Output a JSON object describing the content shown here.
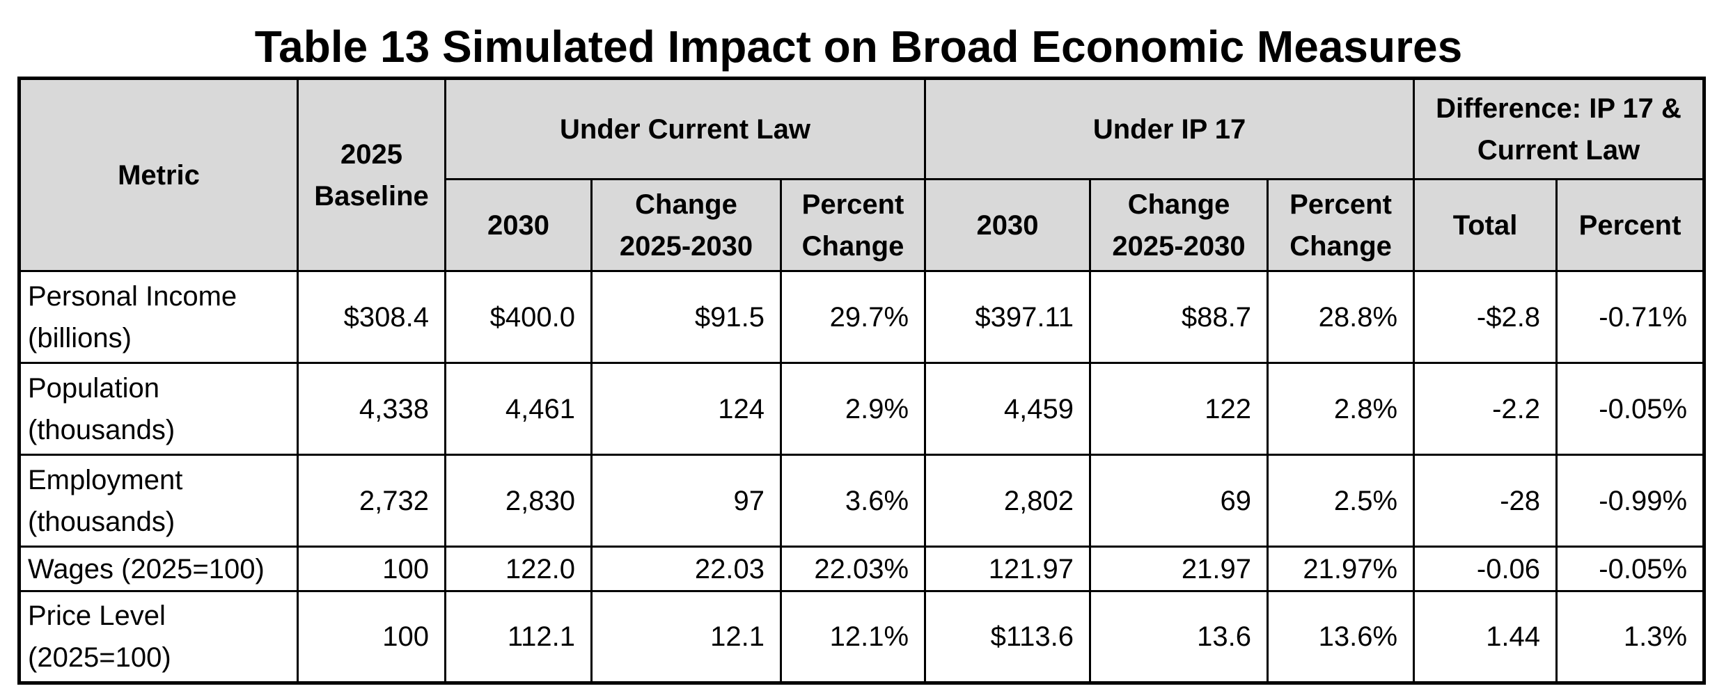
{
  "title": "Table 13 Simulated Impact on Broad Economic Measures",
  "headers": {
    "metric": "Metric",
    "baseline": "2025 Baseline",
    "group_current": "Under Current Law",
    "group_ip": "Under IP 17",
    "group_diff": "Difference: IP 17 & Current Law",
    "current_2030": "2030",
    "current_change": "Change 2025-2030",
    "current_pct": "Percent Change",
    "ip_2030": "2030",
    "ip_change": "Change 2025-2030",
    "ip_pct": "Percent Change",
    "diff_total": "Total",
    "diff_pct": "Percent"
  },
  "rows": [
    {
      "metric": "Personal Income (billions)",
      "baseline": "$308.4",
      "cl_2030": "$400.0",
      "cl_change": "$91.5",
      "cl_pct": "29.7%",
      "ip_2030": "$397.11",
      "ip_change": "$88.7",
      "ip_pct": "28.8%",
      "diff_total": "-$2.8",
      "diff_pct": "-0.71%"
    },
    {
      "metric": "Population (thousands)",
      "baseline": "4,338",
      "cl_2030": "4,461",
      "cl_change": "124",
      "cl_pct": "2.9%",
      "ip_2030": "4,459",
      "ip_change": "122",
      "ip_pct": "2.8%",
      "diff_total": "-2.2",
      "diff_pct": "-0.05%"
    },
    {
      "metric": "Employment (thousands)",
      "baseline": "2,732",
      "cl_2030": "2,830",
      "cl_change": "97",
      "cl_pct": "3.6%",
      "ip_2030": "2,802",
      "ip_change": "69",
      "ip_pct": "2.5%",
      "diff_total": "-28",
      "diff_pct": "-0.99%"
    },
    {
      "metric": "Wages (2025=100)",
      "baseline": "100",
      "cl_2030": "122.0",
      "cl_change": "22.03",
      "cl_pct": "22.03%",
      "ip_2030": "121.97",
      "ip_change": "21.97",
      "ip_pct": "21.97%",
      "diff_total": "-0.06",
      "diff_pct": "-0.05%"
    },
    {
      "metric": "Price Level (2025=100)",
      "baseline": "100",
      "cl_2030": "112.1",
      "cl_change": "12.1",
      "cl_pct": "12.1%",
      "ip_2030": "$113.6",
      "ip_change": "13.6",
      "ip_pct": "13.6%",
      "diff_total": "1.44",
      "diff_pct": "1.3%"
    }
  ]
}
